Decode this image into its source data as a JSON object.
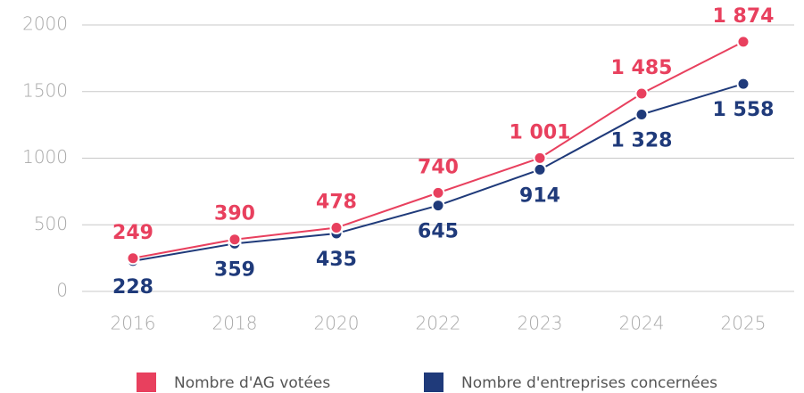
{
  "chart_data": {
    "type": "line",
    "categories": [
      "2016",
      "2018",
      "2020",
      "2022",
      "2023",
      "2024",
      "2025"
    ],
    "series": [
      {
        "name": "Nombre d'AG votées",
        "color": "#e8405e",
        "values": [
          249,
          390,
          478,
          740,
          1001,
          1485,
          1874
        ],
        "value_labels": [
          "249",
          "390",
          "478",
          "740",
          "1 001",
          "1 485",
          "1 874"
        ]
      },
      {
        "name": "Nombre d'entreprises concernées",
        "color": "#1f3a7a",
        "values": [
          228,
          359,
          435,
          645,
          914,
          1328,
          1558
        ],
        "value_labels": [
          "228",
          "359",
          "435",
          "645",
          "914",
          "1 328",
          "1 558"
        ]
      }
    ],
    "ylim": [
      0,
      2000
    ],
    "yticks": [
      0,
      500,
      1000,
      1500,
      2000
    ],
    "grid": true
  }
}
